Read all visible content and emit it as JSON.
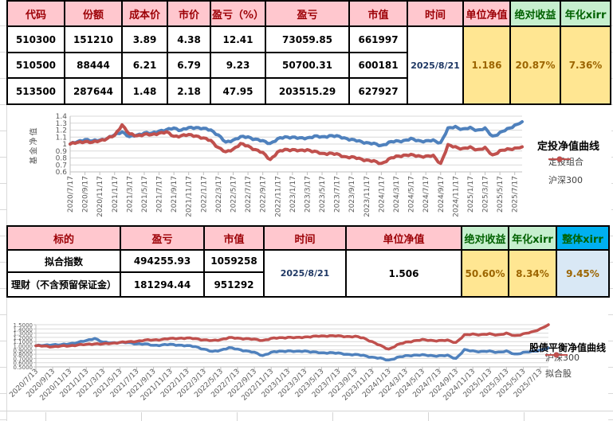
{
  "palette": {
    "header_pink_bg": "#ffc7ce",
    "header_red_text": "#9c0006",
    "header_green_bg": "#c6efce",
    "header_green_text": "#006100",
    "header_blue_bg": "#00b0f0",
    "value_yellow_bg": "#ffe692",
    "value_brown_text": "#9c6500",
    "value_lightblue_bg": "#d9e8f5",
    "date_text": "#1f3864",
    "line_blue": "#4f81bd",
    "line_red": "#c0504d"
  },
  "table1": {
    "headers": [
      {
        "label": "代码",
        "style": "pink"
      },
      {
        "label": "份额",
        "style": "pink"
      },
      {
        "label": "成本价",
        "style": "pink"
      },
      {
        "label": "市价",
        "style": "pink"
      },
      {
        "label": "盈亏（%）",
        "style": "pink"
      },
      {
        "label": "盈亏",
        "style": "pink"
      },
      {
        "label": "市值",
        "style": "pink"
      },
      {
        "label": "时间",
        "style": "pink"
      },
      {
        "label": "单位净值",
        "style": "pink"
      },
      {
        "label": "绝对收益",
        "style": "green"
      },
      {
        "label": "年化xirr",
        "style": "green"
      }
    ],
    "rows": [
      [
        "510300",
        "151210",
        "3.89",
        "4.38",
        "12.41",
        "73059.85",
        "661997"
      ],
      [
        "510500",
        "88444",
        "6.21",
        "6.79",
        "9.23",
        "50700.31",
        "600181"
      ],
      [
        "513500",
        "287644",
        "1.48",
        "2.18",
        "47.95",
        "203515.29",
        "627927"
      ]
    ],
    "merged": [
      {
        "label": "2025/8/21",
        "style": "date"
      },
      {
        "label": "1.186",
        "style": "yellow"
      },
      {
        "label": "20.87%",
        "style": "yellow"
      },
      {
        "label": "7.36%",
        "style": "yellow"
      }
    ]
  },
  "table2": {
    "headers": [
      {
        "label": "标的",
        "style": "pink"
      },
      {
        "label": "盈亏",
        "style": "pink"
      },
      {
        "label": "市值",
        "style": "pink"
      },
      {
        "label": "时间",
        "style": "pink"
      },
      {
        "label": "单位净值",
        "style": "pink"
      },
      {
        "label": "绝对收益",
        "style": "green"
      },
      {
        "label": "年化xirr",
        "style": "green"
      },
      {
        "label": "整体xirr",
        "style": "blue"
      }
    ],
    "rows": [
      [
        "拟合指数",
        "494255.93",
        "1059258"
      ],
      [
        "理财（不含预留保证金）",
        "181294.44",
        "951292"
      ]
    ],
    "merged": [
      {
        "label": "2025/8/21",
        "style": "date"
      },
      {
        "label": "1.506",
        "style": "white"
      },
      {
        "label": "50.60%",
        "style": "yellow"
      },
      {
        "label": "8.34%",
        "style": "yellow"
      },
      {
        "label": "9.45%",
        "style": "lightblue"
      }
    ]
  },
  "chart_data": [
    {
      "type": "line",
      "title": "定投净值曲线",
      "ylabel": "基金净值",
      "ylim": [
        0.6,
        1.4
      ],
      "yticks": [
        "1.4",
        "1.3",
        "1.2",
        "1.1",
        "1",
        "0.9",
        "0.8",
        "0.7",
        "0.6"
      ],
      "grid": true,
      "legend_position": "right",
      "x_ticklabels": [
        "2020/7/17",
        "2020/9/17",
        "2020/11/17",
        "2021/1/17",
        "2021/3/17",
        "2021/5/17",
        "2021/7/17",
        "2021/9/17",
        "2021/11/17",
        "2022/1/17",
        "2022/3/17",
        "2022/5/17",
        "2022/7/17",
        "2022/9/17",
        "2022/11/17",
        "2023/1/17",
        "2023/3/17",
        "2023/5/17",
        "2023/7/17",
        "2023/9/17",
        "2023/11/17",
        "2024/1/17",
        "2024/3/17",
        "2024/5/17",
        "2024/7/17",
        "2024/9/17",
        "2024/11/17",
        "2025/1/17",
        "2025/3/17",
        "2025/5/17",
        "2025/7/17"
      ],
      "x_note": "monthly points 2020/7 to 2025/8",
      "series": [
        {
          "name": "定投组合",
          "color": "#4f81bd",
          "values": [
            1.0,
            1.03,
            1.07,
            1.04,
            1.06,
            1.08,
            1.13,
            1.18,
            1.1,
            1.13,
            1.16,
            1.15,
            1.19,
            1.2,
            1.23,
            1.2,
            1.23,
            1.24,
            1.22,
            1.2,
            1.13,
            1.02,
            1.06,
            1.1,
            1.1,
            1.07,
            1.04,
            1.01,
            1.07,
            1.1,
            1.1,
            1.08,
            1.09,
            1.11,
            1.1,
            1.12,
            1.11,
            1.09,
            1.06,
            1.04,
            1.02,
            1.0,
            0.98,
            1.02,
            1.04,
            1.05,
            1.07,
            1.05,
            1.04,
            1.05,
            1.02,
            1.22,
            1.25,
            1.21,
            1.23,
            1.2,
            1.22,
            1.11,
            1.16,
            1.21,
            1.27,
            1.32
          ]
        },
        {
          "name": "沪深300",
          "color": "#c0504d",
          "values": [
            1.0,
            1.02,
            1.04,
            1.02,
            1.05,
            1.08,
            1.12,
            1.28,
            1.14,
            1.12,
            1.14,
            1.13,
            1.16,
            1.17,
            1.11,
            1.12,
            1.13,
            1.12,
            1.08,
            1.05,
            0.95,
            0.88,
            0.93,
            1.0,
            0.97,
            0.92,
            0.87,
            0.78,
            0.88,
            0.92,
            0.92,
            0.9,
            0.92,
            0.89,
            0.86,
            0.87,
            0.85,
            0.82,
            0.81,
            0.79,
            0.77,
            0.75,
            0.72,
            0.78,
            0.82,
            0.84,
            0.84,
            0.83,
            0.82,
            0.83,
            0.72,
            0.98,
            0.96,
            0.93,
            0.95,
            0.92,
            0.94,
            0.84,
            0.9,
            0.92,
            0.94,
            0.96
          ]
        }
      ]
    },
    {
      "type": "line",
      "title": "股债平衡净值曲线",
      "ylabel": "",
      "ylim": [
        0.5,
        1.5
      ],
      "yticks": [
        "1.5000",
        "1.4000",
        "1.3000",
        "1.2000",
        "1.1000",
        "1.0000",
        "0.9000",
        "0.8000",
        "0.7000",
        "0.6000",
        "0.5000"
      ],
      "grid": true,
      "legend_position": "right",
      "x_ticklabels": [
        "2020/7/13",
        "2020/9/13",
        "2020/11/13",
        "2021/1/13",
        "2021/3/13",
        "2021/5/13",
        "2021/7/13",
        "2021/9/13",
        "2021/11/13",
        "2022/1/13",
        "2022/3/13",
        "2022/5/13",
        "2022/7/13",
        "2022/9/13",
        "2022/11/13",
        "2023/1/13",
        "2023/3/13",
        "2023/5/13",
        "2023/7/13",
        "2023/9/13",
        "2023/11/13",
        "2024/1/13",
        "2024/3/13",
        "2024/5/13",
        "2024/7/13",
        "2024/9/13",
        "2024/11/13",
        "2025/1/13",
        "2025/3/13",
        "2025/5/13",
        "2025/7/13"
      ],
      "x_note": "monthly points 2020/7 to 2025/8",
      "series": [
        {
          "name": "沪深300",
          "color": "#4f81bd",
          "values": [
            1.0,
            1.01,
            1.03,
            1.02,
            1.05,
            1.08,
            1.12,
            1.18,
            1.08,
            1.07,
            1.08,
            1.07,
            1.05,
            1.04,
            1.01,
            1.02,
            1.03,
            1.02,
            1.0,
            0.98,
            0.92,
            0.86,
            0.9,
            0.95,
            0.92,
            0.88,
            0.84,
            0.77,
            0.84,
            0.87,
            0.88,
            0.86,
            0.88,
            0.85,
            0.83,
            0.84,
            0.82,
            0.8,
            0.79,
            0.77,
            0.73,
            0.7,
            0.66,
            0.72,
            0.76,
            0.78,
            0.78,
            0.77,
            0.76,
            0.77,
            0.7,
            0.9,
            0.88,
            0.86,
            0.87,
            0.85,
            0.87,
            0.8,
            0.84,
            0.86,
            0.9,
            0.95
          ]
        },
        {
          "name": "拟合股",
          "color": "#c0504d",
          "values": [
            1.0,
            0.99,
            0.98,
            0.99,
            1.0,
            1.02,
            1.03,
            1.05,
            1.04,
            1.06,
            1.08,
            1.09,
            1.11,
            1.13,
            1.14,
            1.15,
            1.17,
            1.18,
            1.18,
            1.17,
            1.14,
            1.12,
            1.15,
            1.19,
            1.18,
            1.17,
            1.15,
            1.13,
            1.17,
            1.19,
            1.2,
            1.19,
            1.21,
            1.22,
            1.23,
            1.24,
            1.23,
            1.22,
            1.22,
            1.18,
            1.1,
            1.0,
            0.92,
            1.02,
            1.08,
            1.12,
            1.14,
            1.13,
            1.12,
            1.13,
            1.08,
            1.25,
            1.28,
            1.26,
            1.28,
            1.26,
            1.29,
            1.24,
            1.28,
            1.32,
            1.4,
            1.5
          ]
        }
      ]
    }
  ]
}
